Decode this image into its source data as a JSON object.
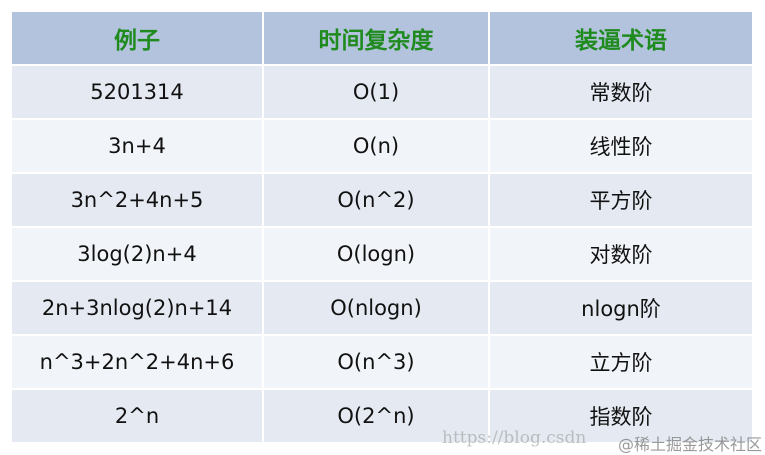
{
  "table": {
    "headers": [
      "例子",
      "时间复杂度",
      "装逼术语"
    ],
    "rows": [
      [
        "5201314",
        "O(1)",
        "常数阶"
      ],
      [
        "3n+4",
        "O(n)",
        "线性阶"
      ],
      [
        "3n^2+4n+5",
        "O(n^2)",
        "平方阶"
      ],
      [
        "3log(2)n+4",
        "O(logn)",
        "对数阶"
      ],
      [
        "2n+3nlog(2)n+14",
        "O(nlogn)",
        "nlogn阶"
      ],
      [
        "n^3+2n^2+4n+6",
        "O(n^3)",
        "立方阶"
      ],
      [
        "2^n",
        "O(2^n)",
        "指数阶"
      ]
    ]
  },
  "watermarks": [
    "https://blog.csdn",
    "@稀土掘金技术社区"
  ],
  "colors": {
    "header_bg": "#b4c3dd",
    "header_text": "#1f8b1f",
    "row_odd": "#e5eaf2",
    "row_even": "#f1f4f8"
  }
}
